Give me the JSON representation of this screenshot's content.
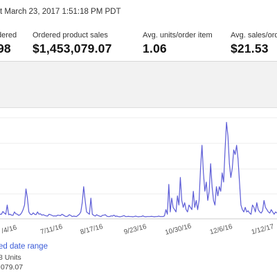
{
  "header": {
    "updated_text": "t March 23, 2017 1:51:18 PM PDT"
  },
  "metrics": [
    {
      "label": "dered",
      "value": "98"
    },
    {
      "label": "Ordered product sales",
      "value": "$1,453,079.07"
    },
    {
      "label": "Avg. units/order item",
      "value": "1.06"
    },
    {
      "label": "Avg. sales/ord",
      "value": "$21.53"
    }
  ],
  "chart_data": {
    "type": "line",
    "x_ticks": [
      "/4/16",
      "7/11/16",
      "8/17/16",
      "9/23/16",
      "10/30/16",
      "12/6/16",
      "1/12/17"
    ],
    "series": [
      {
        "color": "#5b5bd6",
        "values": [
          2.0,
          2.0,
          3.2,
          2.5,
          2.0,
          6.0,
          1.8,
          2.0,
          1.6,
          1.5,
          3.0,
          2.2,
          2.0,
          1.5,
          1.8,
          2.6,
          4.0,
          6.0,
          13.0,
          9.0,
          3.0,
          2.0,
          1.8,
          2.6,
          2.0,
          1.8,
          3.0,
          2.0,
          2.2,
          1.6,
          1.8,
          1.5,
          1.3,
          1.2,
          2.0,
          1.8,
          1.5,
          1.2,
          1.3,
          1.2,
          1.6,
          1.5,
          1.4,
          2.0,
          1.6,
          1.2,
          1.0,
          1.2,
          1.8,
          1.5,
          1.0,
          1.2,
          1.1,
          1.0,
          1.5,
          2.0,
          3.0,
          7.0,
          14.0,
          8.0,
          3.0,
          2.5,
          2.0,
          9.0,
          2.0,
          1.5,
          1.2,
          1.8,
          1.4,
          1.2,
          1.0,
          1.5,
          1.6,
          1.8,
          1.2,
          1.0,
          1.0,
          1.3,
          1.2,
          1.6,
          1.1,
          1.2,
          1.0,
          0.9,
          1.0,
          1.2,
          1.4,
          1.0,
          1.0,
          1.1,
          1.0,
          1.0,
          0.9,
          1.0,
          1.2,
          1.0,
          0.9,
          1.0,
          1.0,
          1.3,
          1.0,
          0.9,
          1.0,
          1.0,
          1.0,
          1.1,
          1.0,
          0.9,
          1.0,
          1.0,
          1.2,
          1.0,
          1.0,
          1.0,
          1.3,
          4.0,
          2.0,
          15.0,
          3.0,
          9.0,
          5.0,
          4.0,
          3.0,
          10.0,
          6.0,
          18.0,
          8.0,
          5.0,
          7.0,
          4.0,
          3.0,
          6.0,
          5.0,
          4.0,
          12.0,
          5.0,
          8.0,
          4.0,
          8.0,
          22.0,
          32.0,
          20.0,
          12.0,
          16.0,
          8.0,
          12.0,
          24.0,
          14.0,
          8.0,
          6.0,
          14.0,
          10.0,
          14.0,
          12.0,
          20.0,
          16.0,
          30.0,
          42.0,
          36.0,
          24.0,
          18.0,
          22.0,
          30.0,
          28.0,
          32.0,
          26.0,
          16.0,
          6.0,
          4.0,
          3.0,
          5.0,
          3.0,
          3.5,
          2.5,
          2.0,
          6.0,
          5.0,
          3.0,
          7.0,
          4.0,
          3.0,
          2.5,
          3.5,
          8.0,
          5.0,
          4.0,
          3.0,
          2.5,
          4.0,
          3.0,
          2.0,
          3.0,
          2.5
        ]
      }
    ],
    "grid": true
  },
  "legend": {
    "title": "ed date range",
    "units": "8 Units",
    "sales": ",079.07"
  }
}
